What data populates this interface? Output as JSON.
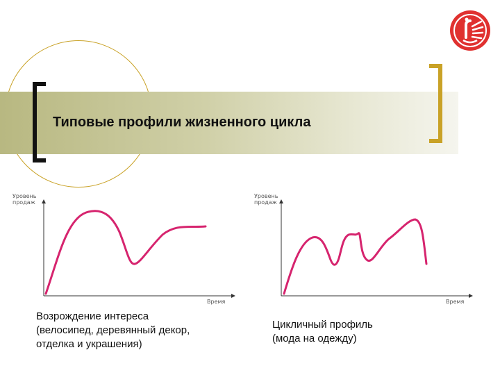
{
  "slide": {
    "title": "Типовые профили жизненного цикла"
  },
  "colors": {
    "accent_gold": "#c9a227",
    "curve_magenta": "#d6246e",
    "logo_red": "#e0312f"
  },
  "charts": [
    {
      "id": "left",
      "y_axis_label_line1": "Уровень",
      "y_axis_label_line2": "продаж",
      "x_axis_label": "Время",
      "caption_lines": [
        "Возрождение интереса",
        "(велосипед, деревянный декор,",
        "отделка и украшения)"
      ]
    },
    {
      "id": "right",
      "y_axis_label_line1": "Уровень",
      "y_axis_label_line2": "продаж",
      "x_axis_label": "Время",
      "caption_lines": [
        "Цикличный профиль",
        "(мода на одежду)"
      ]
    }
  ],
  "logo": {
    "icon": "company-logo-icon"
  }
}
